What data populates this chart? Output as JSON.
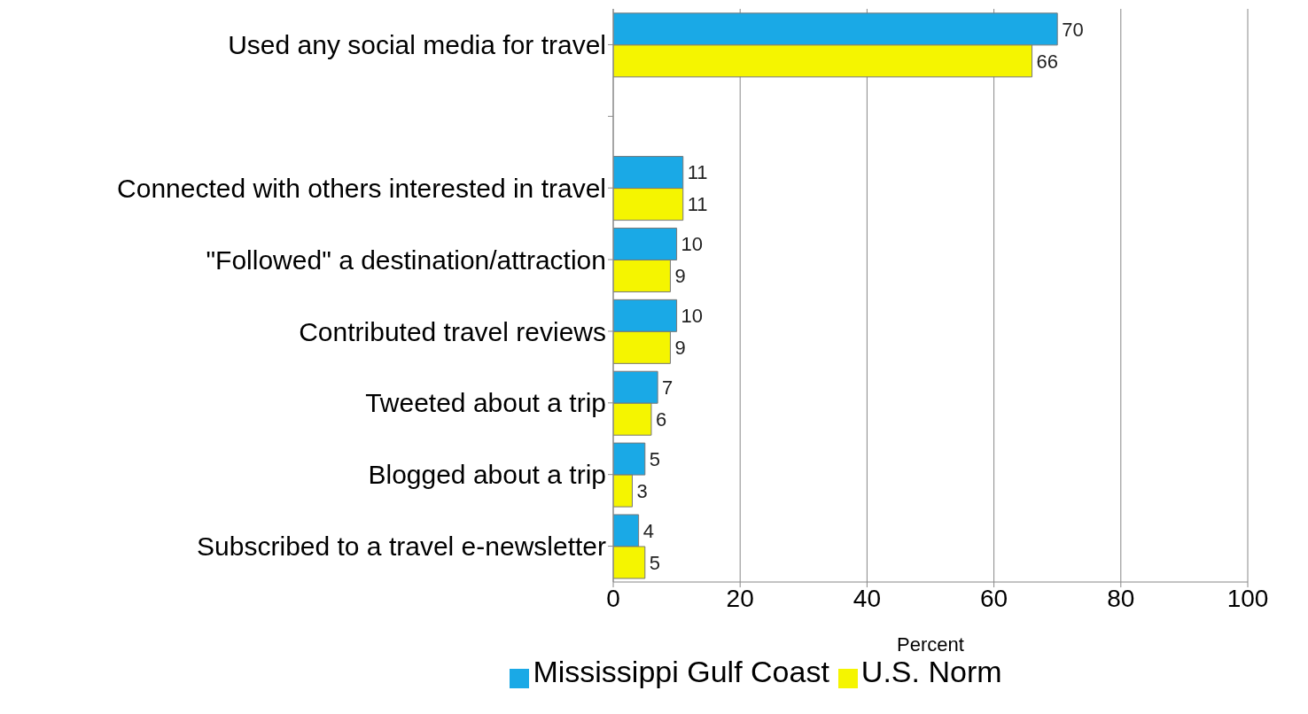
{
  "chart_data": {
    "type": "bar",
    "orientation": "horizontal",
    "xlabel": "Percent",
    "categories": [
      "Used any social media for travel",
      null,
      "Connected with others interested in travel",
      "\"Followed\" a destination/attraction",
      "Contributed travel reviews",
      "Tweeted about a trip",
      "Blogged about a trip",
      "Subscribed to a travel e-newsletter"
    ],
    "series": [
      {
        "name": "Mississippi Gulf Coast",
        "color": "#1aa9e6",
        "values": [
          70,
          null,
          11,
          10,
          10,
          7,
          5,
          4
        ]
      },
      {
        "name": "U.S. Norm",
        "color": "#f5f500",
        "values": [
          66,
          null,
          11,
          9,
          9,
          6,
          3,
          5
        ]
      }
    ],
    "xlim": [
      0,
      100
    ],
    "xticks": [
      0,
      20,
      40,
      60,
      80,
      100
    ],
    "grid": "x",
    "legend": "bottom",
    "data_labels": true
  }
}
